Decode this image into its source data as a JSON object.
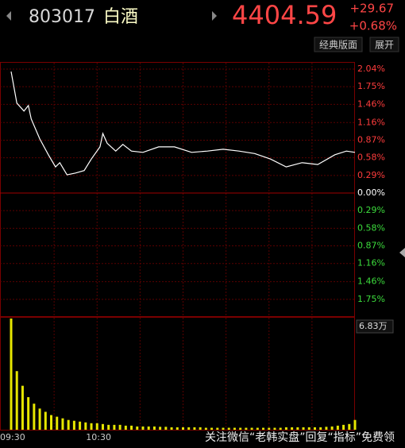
{
  "header": {
    "code": "803017",
    "name": "白酒",
    "price": "4404.59",
    "change": "+29.67",
    "change_pct": "+0.68%"
  },
  "toolbar": {
    "buttons": [
      "经典版面",
      "展开"
    ]
  },
  "watermark": "关注微信“老韩实盘”回复“指标”免费领",
  "chart_data": [
    {
      "type": "line",
      "xlim": [
        0,
        240
      ],
      "ylim": [
        -2.04,
        2.04
      ],
      "grid": true,
      "up_color": "#ff3c3c",
      "down_color": "#3cdc3c",
      "flat_color": "#ffffff",
      "yticks": [
        {
          "value": 2.04,
          "label": "2.04%"
        },
        {
          "value": 1.75,
          "label": "1.75%"
        },
        {
          "value": 1.46,
          "label": "1.46%"
        },
        {
          "value": 1.16,
          "label": "1.16%"
        },
        {
          "value": 0.87,
          "label": "0.87%"
        },
        {
          "value": 0.58,
          "label": "0.58%"
        },
        {
          "value": 0.29,
          "label": "0.29%"
        },
        {
          "value": 0,
          "label": "0.00%"
        },
        {
          "value": -0.29,
          "label": "0.29%"
        },
        {
          "value": -0.58,
          "label": "0.58%"
        },
        {
          "value": -0.87,
          "label": "0.87%"
        },
        {
          "value": -1.16,
          "label": "1.16%"
        },
        {
          "value": -1.46,
          "label": "1.46%"
        },
        {
          "value": -1.75,
          "label": "1.75%"
        }
      ],
      "series": [
        {
          "color": "#ffffff",
          "x": [
            0,
            4,
            9,
            12,
            14,
            20,
            26,
            31,
            34,
            39,
            45,
            51,
            56,
            62,
            64,
            67,
            73,
            78,
            84,
            92,
            103,
            114,
            126,
            137,
            148,
            159,
            170,
            181,
            192,
            203,
            214,
            226,
            234,
            240
          ],
          "values": [
            2.0,
            1.48,
            1.35,
            1.44,
            1.22,
            0.89,
            0.63,
            0.43,
            0.5,
            0.3,
            0.33,
            0.37,
            0.56,
            0.76,
            0.98,
            0.82,
            0.69,
            0.8,
            0.69,
            0.67,
            0.76,
            0.76,
            0.67,
            0.69,
            0.72,
            0.69,
            0.65,
            0.56,
            0.43,
            0.5,
            0.47,
            0.63,
            0.69,
            0.67
          ]
        }
      ]
    },
    {
      "type": "bar",
      "xlim": [
        0,
        240
      ],
      "ylim": [
        0,
        6.83
      ],
      "color": "#e6e600",
      "xticks": [
        {
          "value": 0,
          "label": "09:30"
        },
        {
          "value": 60,
          "label": "10:30"
        }
      ],
      "yticks": [
        {
          "value": 6.83,
          "label": "6.83万"
        }
      ],
      "x": [
        0,
        4,
        8,
        12,
        16,
        20,
        24,
        28,
        32,
        36,
        40,
        44,
        48,
        52,
        56,
        60,
        64,
        68,
        72,
        76,
        80,
        84,
        88,
        92,
        96,
        100,
        104,
        108,
        112,
        116,
        120,
        124,
        128,
        132,
        136,
        140,
        144,
        148,
        152,
        156,
        160,
        164,
        168,
        172,
        176,
        180,
        184,
        188,
        192,
        196,
        200,
        204,
        208,
        212,
        216,
        220,
        224,
        228,
        232,
        236,
        240
      ],
      "values": [
        6.83,
        3.6,
        2.7,
        2.0,
        1.6,
        1.3,
        1.1,
        0.9,
        0.8,
        0.7,
        0.6,
        0.55,
        0.5,
        0.45,
        0.4,
        0.4,
        0.35,
        0.3,
        0.3,
        0.3,
        0.25,
        0.25,
        0.2,
        0.2,
        0.2,
        0.2,
        0.18,
        0.18,
        0.15,
        0.15,
        0.15,
        0.15,
        0.15,
        0.15,
        0.12,
        0.12,
        0.12,
        0.12,
        0.12,
        0.12,
        0.12,
        0.12,
        0.12,
        0.12,
        0.12,
        0.12,
        0.12,
        0.12,
        0.15,
        0.15,
        0.15,
        0.15,
        0.15,
        0.15,
        0.15,
        0.18,
        0.2,
        0.25,
        0.3,
        0.35,
        0.6
      ]
    }
  ]
}
